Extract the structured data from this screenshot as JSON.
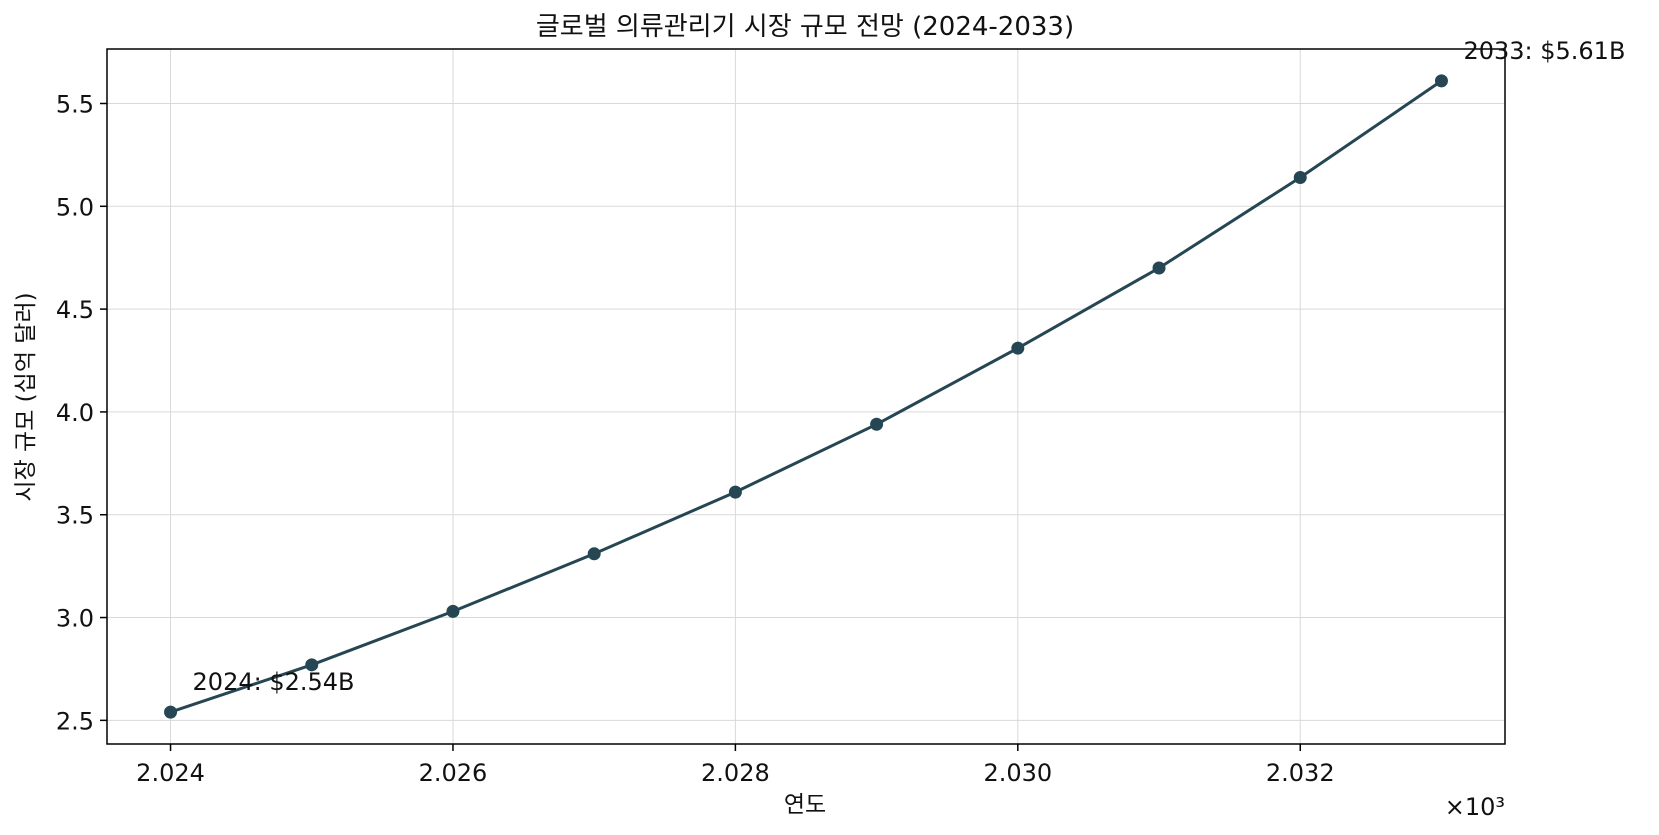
{
  "chart_data": {
    "type": "line",
    "title": "글로벌 의류관리기 시장 규모 전망 (2024-2033)",
    "xlabel": "연도",
    "ylabel": "시장 규모 (십억 달러)",
    "x_offset_label": "×10³",
    "x": [
      2024,
      2025,
      2026,
      2027,
      2028,
      2029,
      2030,
      2031,
      2032,
      2033
    ],
    "series": [
      {
        "values": [
          2.54,
          2.77,
          3.03,
          3.31,
          3.61,
          3.94,
          4.31,
          4.7,
          5.14,
          5.61
        ]
      }
    ],
    "xlim": [
      2023.55,
      2033.45
    ],
    "ylim": [
      2.385,
      5.765
    ],
    "xticks": [
      2024,
      2026,
      2028,
      2030,
      2032
    ],
    "xtick_labels": [
      "2.024",
      "2.026",
      "2.028",
      "2.030",
      "2.032"
    ],
    "yticks": [
      2.5,
      3.0,
      3.5,
      4.0,
      4.5,
      5.0,
      5.5
    ],
    "ytick_labels": [
      "2.5",
      "3.0",
      "3.5",
      "4.0",
      "4.5",
      "5.0",
      "5.5"
    ],
    "annotations": [
      {
        "text": "2024: $2.54B",
        "x": 2024,
        "y": 2.54
      },
      {
        "text": "2033: $5.61B",
        "x": 2033,
        "y": 5.61
      }
    ],
    "grid": true,
    "line_color": "#264653"
  }
}
